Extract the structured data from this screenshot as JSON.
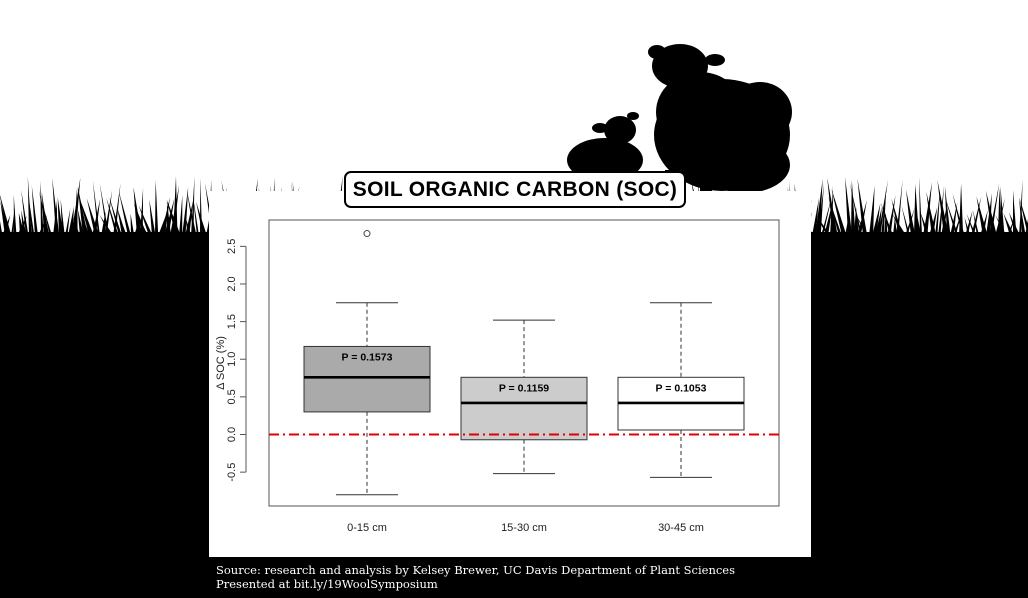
{
  "slide": {
    "title": "SOIL ORGANIC CARBON (SOC)",
    "source_line_1": "Source: research and analysis by Kelsey Brewer, UC Davis Department of Plant Sciences",
    "source_line_2": "Presented at bit.ly/19WoolSymposium"
  },
  "chart_data": {
    "type": "boxplot",
    "ylabel": "Δ SOC (%)",
    "xlabel": "",
    "ylim": [
      -0.95,
      2.85
    ],
    "yticks": [
      -0.5,
      0.0,
      0.5,
      1.0,
      1.5,
      2.0,
      2.5
    ],
    "ytick_labels": [
      "-0.5",
      "0.0",
      "0.5",
      "1.0",
      "1.5",
      "2.0",
      "2.5"
    ],
    "grid": false,
    "reference_line": {
      "y": 0.0,
      "style": "dash-dot",
      "color": "#e00000"
    },
    "boxes": [
      {
        "category": "0-15 cm",
        "whisker_low": -0.8,
        "q1": 0.3,
        "median": 0.76,
        "q3": 1.17,
        "whisker_high": 1.75,
        "outliers": [
          2.67
        ],
        "annotation": "P = 0.1573",
        "fill": "#aaaaaa"
      },
      {
        "category": "15-30 cm",
        "whisker_low": -0.52,
        "q1": -0.07,
        "median": 0.42,
        "q3": 0.76,
        "whisker_high": 1.52,
        "outliers": [],
        "annotation": "P = 0.1159",
        "fill": "#cccccc"
      },
      {
        "category": "30-45 cm",
        "whisker_low": -0.57,
        "q1": 0.06,
        "median": 0.42,
        "q3": 0.76,
        "whisker_high": 1.75,
        "outliers": [],
        "annotation": "P = 0.1053",
        "fill": "#ffffff"
      }
    ]
  }
}
